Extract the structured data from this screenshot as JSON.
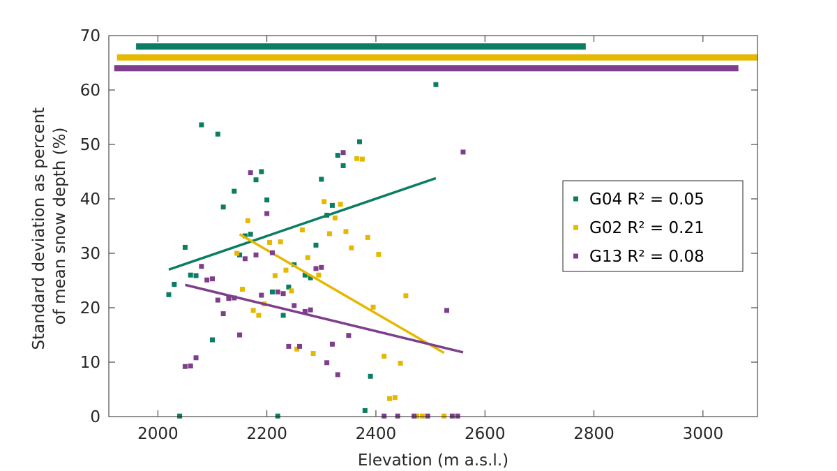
{
  "chart_data": {
    "type": "scatter",
    "xlabel": "Elevation (m a.s.l.)",
    "ylabel_lines": [
      "Standard deviation as percent",
      "of mean snow depth (%)"
    ],
    "xlim": [
      1910,
      3100
    ],
    "ylim": [
      0,
      70
    ],
    "xticks": [
      2000,
      2200,
      2400,
      2600,
      2800,
      3000
    ],
    "yticks": [
      0,
      10,
      20,
      30,
      40,
      50,
      60,
      70
    ],
    "grid": false,
    "legend_position": "right",
    "series": [
      {
        "name": "G04",
        "r2_text": "R² = 0.05",
        "color": "#0a7d62",
        "elevation_range": [
          1960,
          2785
        ],
        "range_bar_y": 68,
        "fit": [
          [
            2020,
            27.0
          ],
          [
            2510,
            43.8
          ]
        ],
        "points": [
          [
            2020,
            22.4
          ],
          [
            2030,
            24.3
          ],
          [
            2040,
            0.1
          ],
          [
            2050,
            31.1
          ],
          [
            2060,
            26.0
          ],
          [
            2070,
            25.9
          ],
          [
            2080,
            53.6
          ],
          [
            2100,
            14.1
          ],
          [
            2110,
            51.9
          ],
          [
            2120,
            38.5
          ],
          [
            2140,
            41.4
          ],
          [
            2150,
            29.7
          ],
          [
            2160,
            33.2
          ],
          [
            2170,
            33.5
          ],
          [
            2180,
            43.5
          ],
          [
            2190,
            45.0
          ],
          [
            2200,
            39.8
          ],
          [
            2210,
            22.9
          ],
          [
            2220,
            0.1
          ],
          [
            2230,
            18.6
          ],
          [
            2240,
            23.8
          ],
          [
            2250,
            27.9
          ],
          [
            2270,
            26.0
          ],
          [
            2280,
            25.5
          ],
          [
            2290,
            31.5
          ],
          [
            2300,
            43.6
          ],
          [
            2310,
            37.0
          ],
          [
            2320,
            38.8
          ],
          [
            2330,
            48.0
          ],
          [
            2340,
            46.1
          ],
          [
            2370,
            50.5
          ],
          [
            2380,
            1.1
          ],
          [
            2390,
            7.4
          ],
          [
            2510,
            61.0
          ]
        ]
      },
      {
        "name": "G02",
        "r2_text": "R² = 0.21",
        "color": "#e6b800",
        "elevation_range": [
          1925,
          3100
        ],
        "range_bar_y": 66,
        "fit": [
          [
            2150,
            33.5
          ],
          [
            2525,
            11.7
          ]
        ],
        "points": [
          [
            2145,
            30.0
          ],
          [
            2155,
            23.4
          ],
          [
            2165,
            36.0
          ],
          [
            2175,
            19.5
          ],
          [
            2185,
            18.6
          ],
          [
            2195,
            20.7
          ],
          [
            2205,
            32.0
          ],
          [
            2215,
            25.9
          ],
          [
            2225,
            32.1
          ],
          [
            2235,
            26.9
          ],
          [
            2245,
            23.1
          ],
          [
            2255,
            12.4
          ],
          [
            2265,
            34.3
          ],
          [
            2275,
            29.2
          ],
          [
            2285,
            11.6
          ],
          [
            2295,
            26.0
          ],
          [
            2305,
            39.5
          ],
          [
            2315,
            33.6
          ],
          [
            2325,
            36.5
          ],
          [
            2335,
            39.0
          ],
          [
            2345,
            34.0
          ],
          [
            2355,
            31.0
          ],
          [
            2365,
            47.4
          ],
          [
            2375,
            47.3
          ],
          [
            2385,
            32.9
          ],
          [
            2395,
            20.1
          ],
          [
            2405,
            29.8
          ],
          [
            2415,
            11.1
          ],
          [
            2425,
            3.3
          ],
          [
            2435,
            3.5
          ],
          [
            2445,
            9.8
          ],
          [
            2455,
            22.2
          ],
          [
            2475,
            0.1
          ],
          [
            2485,
            0.1
          ],
          [
            2525,
            0.1
          ],
          [
            2360,
            66.0
          ]
        ]
      },
      {
        "name": "G13",
        "r2_text": "R² = 0.08",
        "color": "#7e3f8a",
        "elevation_range": [
          1920,
          3065
        ],
        "range_bar_y": 64,
        "fit": [
          [
            2050,
            24.2
          ],
          [
            2560,
            11.8
          ]
        ],
        "points": [
          [
            2050,
            9.2
          ],
          [
            2060,
            9.3
          ],
          [
            2070,
            10.8
          ],
          [
            2080,
            27.6
          ],
          [
            2090,
            25.1
          ],
          [
            2100,
            25.3
          ],
          [
            2110,
            21.4
          ],
          [
            2120,
            18.9
          ],
          [
            2130,
            21.7
          ],
          [
            2140,
            21.8
          ],
          [
            2150,
            15.0
          ],
          [
            2160,
            29.0
          ],
          [
            2170,
            44.8
          ],
          [
            2180,
            29.7
          ],
          [
            2190,
            22.3
          ],
          [
            2200,
            37.3
          ],
          [
            2210,
            30.1
          ],
          [
            2220,
            22.9
          ],
          [
            2230,
            22.6
          ],
          [
            2240,
            12.9
          ],
          [
            2250,
            20.4
          ],
          [
            2260,
            12.9
          ],
          [
            2270,
            19.3
          ],
          [
            2280,
            19.6
          ],
          [
            2290,
            27.2
          ],
          [
            2300,
            27.4
          ],
          [
            2310,
            9.9
          ],
          [
            2320,
            13.3
          ],
          [
            2330,
            7.7
          ],
          [
            2340,
            48.5
          ],
          [
            2350,
            14.9
          ],
          [
            2415,
            0.1
          ],
          [
            2440,
            0.1
          ],
          [
            2470,
            0.1
          ],
          [
            2495,
            0.1
          ],
          [
            2530,
            19.5
          ],
          [
            2540,
            0.1
          ],
          [
            2550,
            0.1
          ],
          [
            2560,
            48.6
          ]
        ]
      }
    ]
  }
}
